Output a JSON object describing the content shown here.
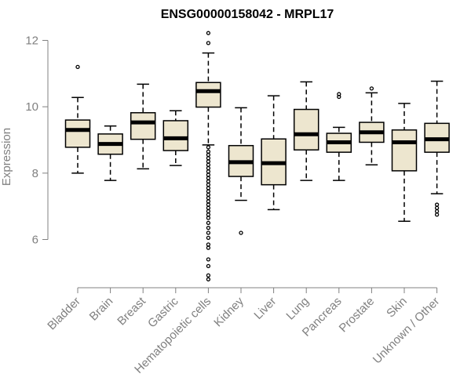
{
  "chart_data": {
    "type": "boxplot",
    "title": "ENSG00000158042 - MRPL17",
    "xlabel": "",
    "ylabel": "Expression",
    "ylim": [
      4.6,
      12.4
    ],
    "yticks": [
      6,
      8,
      10,
      12
    ],
    "yticklabels": [
      "6",
      "8",
      "10",
      "12"
    ],
    "box_fill": "#ede6cf",
    "categories": [
      "Bladder",
      "Brain",
      "Breast",
      "Gastric",
      "Hematopoietic cells",
      "Kidney",
      "Liver",
      "Lung",
      "Pancreas",
      "Prostate",
      "Skin",
      "Unknown / Other"
    ],
    "boxes": [
      {
        "name": "Bladder",
        "whislo": 8.0,
        "q1": 8.78,
        "med": 9.3,
        "q3": 9.6,
        "whishi": 10.28,
        "fliers": [
          11.2
        ]
      },
      {
        "name": "Brain",
        "whislo": 7.78,
        "q1": 8.57,
        "med": 8.88,
        "q3": 9.18,
        "whishi": 9.42,
        "fliers": []
      },
      {
        "name": "Breast",
        "whislo": 8.13,
        "q1": 9.02,
        "med": 9.53,
        "q3": 9.82,
        "whishi": 10.68,
        "fliers": []
      },
      {
        "name": "Gastric",
        "whislo": 8.23,
        "q1": 8.68,
        "med": 9.05,
        "q3": 9.58,
        "whishi": 9.88,
        "fliers": []
      },
      {
        "name": "Hematopoietic cells",
        "whislo": 8.85,
        "q1": 9.99,
        "med": 10.47,
        "q3": 10.73,
        "whishi": 11.62,
        "fliers": [
          12.22,
          11.92,
          8.78,
          8.65,
          8.55,
          8.45,
          8.35,
          8.25,
          8.15,
          8.05,
          7.95,
          7.85,
          7.75,
          7.65,
          7.55,
          7.45,
          7.35,
          7.25,
          7.15,
          7.05,
          6.95,
          6.85,
          6.75,
          6.65,
          6.5,
          6.35,
          6.2,
          6.05,
          5.85,
          5.75,
          5.4,
          5.2,
          4.92,
          4.8
        ]
      },
      {
        "name": "Kidney",
        "whislo": 7.18,
        "q1": 7.9,
        "med": 8.33,
        "q3": 8.83,
        "whishi": 9.97,
        "fliers": [
          6.2
        ]
      },
      {
        "name": "Liver",
        "whislo": 6.9,
        "q1": 7.65,
        "med": 8.3,
        "q3": 9.03,
        "whishi": 10.33,
        "fliers": []
      },
      {
        "name": "Lung",
        "whislo": 7.78,
        "q1": 8.7,
        "med": 9.17,
        "q3": 9.92,
        "whishi": 10.75,
        "fliers": []
      },
      {
        "name": "Pancreas",
        "whislo": 7.78,
        "q1": 8.63,
        "med": 8.93,
        "q3": 9.2,
        "whishi": 9.38,
        "fliers": [
          10.3,
          10.38
        ]
      },
      {
        "name": "Prostate",
        "whislo": 8.25,
        "q1": 8.93,
        "med": 9.23,
        "q3": 9.53,
        "whishi": 10.42,
        "fliers": [
          10.55
        ]
      },
      {
        "name": "Skin",
        "whislo": 6.55,
        "q1": 8.07,
        "med": 8.93,
        "q3": 9.3,
        "whishi": 10.1,
        "fliers": []
      },
      {
        "name": "Unknown / Other",
        "whislo": 7.38,
        "q1": 8.63,
        "med": 9.02,
        "q3": 9.5,
        "whishi": 10.77,
        "fliers": [
          7.05,
          6.95,
          6.85,
          6.75
        ]
      }
    ]
  }
}
